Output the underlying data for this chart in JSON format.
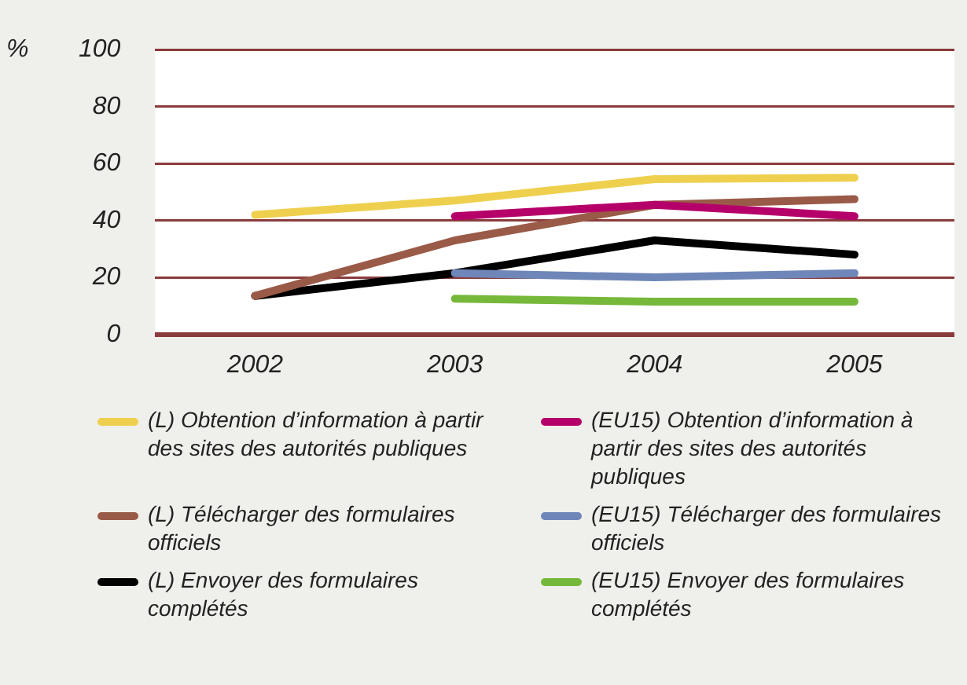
{
  "chart_data": {
    "type": "line",
    "ylabel": "%",
    "categories": [
      "2002",
      "2003",
      "2004",
      "2005"
    ],
    "ylim": [
      0,
      100
    ],
    "yticks": [
      0,
      20,
      40,
      60,
      80,
      100
    ],
    "grid": "y",
    "legend": "bottom",
    "marker": "none",
    "line_style": "solid",
    "series": [
      {
        "name": "(L) Obtention d’information à partir des sites des autorités publiques",
        "color": "#efd04e",
        "values": [
          42,
          47,
          54.5,
          55
        ]
      },
      {
        "name": "(EU15) Obtention d’information à partir des sites des autorités publiques",
        "color": "#b5006a",
        "values": [
          null,
          41.5,
          45.5,
          41.5
        ]
      },
      {
        "name": "(L) Télécharger des formulaires officiels",
        "color": "#9a5a48",
        "values": [
          13.5,
          33,
          45.5,
          47.5
        ]
      },
      {
        "name": "(EU15) Télécharger des formulaires officiels",
        "color": "#6f86b8",
        "values": [
          null,
          21.5,
          20,
          21.5
        ]
      },
      {
        "name": "(L) Envoyer des formulaires complétés",
        "color": "#000000",
        "values": [
          13.5,
          21.5,
          33,
          28
        ]
      },
      {
        "name": "(EU15) Envoyer des formulaires complétés",
        "color": "#76b83a",
        "values": [
          null,
          12.5,
          11.5,
          11.5
        ]
      }
    ]
  }
}
